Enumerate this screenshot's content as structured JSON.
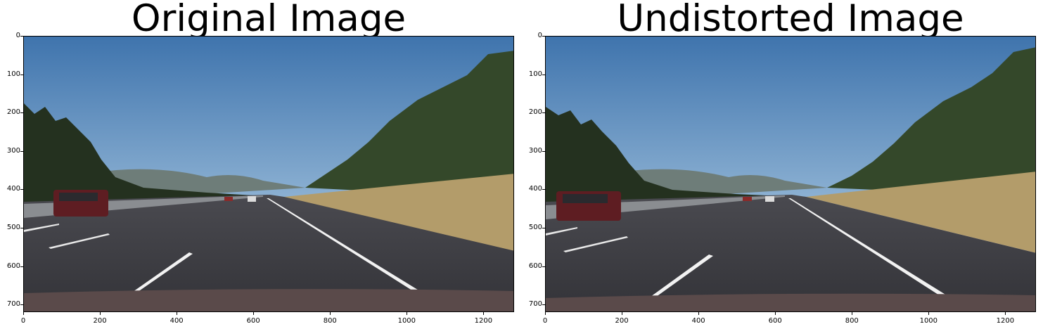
{
  "panels": [
    {
      "title": "Original Image",
      "x_ticks": [
        "0",
        "200",
        "400",
        "600",
        "800",
        "1000",
        "1200"
      ],
      "y_ticks": [
        "0",
        "100",
        "200",
        "300",
        "400",
        "500",
        "600",
        "700"
      ]
    },
    {
      "title": "Undistorted Image",
      "x_ticks": [
        "0",
        "200",
        "400",
        "600",
        "800",
        "1000",
        "1200"
      ],
      "y_ticks": [
        "0",
        "100",
        "200",
        "300",
        "400",
        "500",
        "600",
        "700"
      ]
    }
  ],
  "image_extent": {
    "x": [
      0,
      1280
    ],
    "y": [
      0,
      720
    ]
  },
  "colors": {
    "sky": "#4a7fb6",
    "road": "#3c3d42",
    "grass": "#b39c6a",
    "trees": "#2b3a22",
    "lane_line": "#f2f2f2"
  }
}
